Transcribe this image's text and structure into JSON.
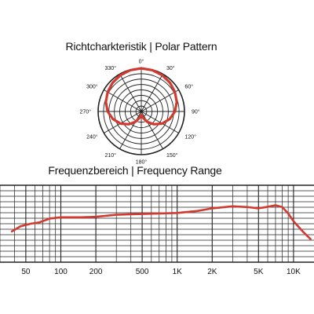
{
  "titles": {
    "polar": "Richtcharkteristik | Polar Pattern",
    "frequency": "Frequenzbereich | Frequency Range"
  },
  "colors": {
    "curve": "#d23a30",
    "grid": "#222222"
  },
  "chart_data": [
    {
      "type": "polar",
      "title": "Richtcharkteristik | Polar Pattern",
      "angle_labels": [
        "0°",
        "30°",
        "60°",
        "90°",
        "120°",
        "150°",
        "180°",
        "210°",
        "240°",
        "270°",
        "300°",
        "330°"
      ],
      "angles_deg": [
        0,
        30,
        60,
        90,
        120,
        150,
        180,
        210,
        240,
        270,
        300,
        330
      ],
      "rings": 8,
      "pattern": "cardioid",
      "series": [
        {
          "angles_deg": [
            0,
            15,
            30,
            45,
            60,
            75,
            90,
            105,
            120,
            135,
            150,
            165,
            180,
            195,
            210,
            225,
            240,
            255,
            270,
            285,
            300,
            315,
            330,
            345,
            360
          ],
          "level": [
            1.0,
            0.99,
            0.97,
            0.94,
            0.9,
            0.85,
            0.78,
            0.68,
            0.56,
            0.42,
            0.28,
            0.15,
            0.08,
            0.15,
            0.28,
            0.42,
            0.56,
            0.68,
            0.78,
            0.85,
            0.9,
            0.94,
            0.97,
            0.99,
            1.0
          ]
        }
      ]
    },
    {
      "type": "line",
      "title": "Frequenzbereich | Frequency Range",
      "x_scale": "log",
      "xlim": [
        30,
        15000
      ],
      "ylim": [
        -20,
        10
      ],
      "grid": true,
      "tick_labels": [
        {
          "label": "50",
          "value": 50
        },
        {
          "label": "100",
          "value": 100
        },
        {
          "label": "200",
          "value": 200
        },
        {
          "label": "500",
          "value": 500
        },
        {
          "label": "1K",
          "value": 1000
        },
        {
          "label": "2K",
          "value": 2000
        },
        {
          "label": "5K",
          "value": 5000
        },
        {
          "label": "10K",
          "value": 10000
        }
      ],
      "series": [
        {
          "x": [
            38,
            45,
            55,
            65,
            80,
            100,
            150,
            200,
            300,
            400,
            500,
            700,
            1000,
            1500,
            2000,
            3000,
            4000,
            5000,
            6000,
            7000,
            8000,
            9000,
            10000,
            12000,
            14000
          ],
          "y": [
            -8,
            -6,
            -5,
            -4.5,
            -3,
            -2.5,
            -2.5,
            -2.3,
            -1.5,
            -1.3,
            -1.2,
            -1,
            -0.8,
            0,
            1,
            1.8,
            1.5,
            1,
            1.6,
            2.2,
            1.5,
            -1,
            -4,
            -8,
            -11
          ]
        }
      ]
    }
  ]
}
